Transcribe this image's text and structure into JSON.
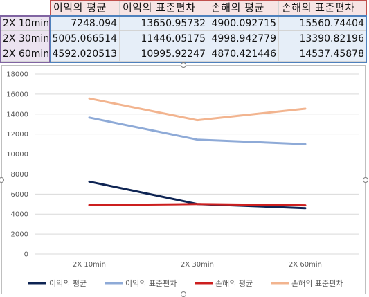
{
  "sheet": {
    "headers": [
      "",
      "이익의 평균",
      "이익의 표준편차",
      "손해의 평균",
      "손해의 표준편차"
    ],
    "rows": [
      {
        "label": "2X 10min",
        "values": [
          "7248.094",
          "13650.95732",
          "4900.092715",
          "15560.74404"
        ]
      },
      {
        "label": "2X 30min",
        "values": [
          "5005.066514",
          "11446.05175",
          "4998.942779",
          "13390.82196"
        ]
      },
      {
        "label": "2X 60min",
        "values": [
          "4592.020513",
          "10995.92247",
          "4870.421446",
          "14537.45878"
        ]
      }
    ]
  },
  "chart_data": {
    "type": "line",
    "categories": [
      "2X 10min",
      "2X 30min",
      "2X 60min"
    ],
    "series": [
      {
        "name": "이익의 평균",
        "color": "#0e2453",
        "values": [
          7248.094,
          5005.066514,
          4592.020513
        ]
      },
      {
        "name": "이익의 표준편차",
        "color": "#8eaad7",
        "values": [
          13650.95732,
          11446.05175,
          10995.92247
        ]
      },
      {
        "name": "손해의 평균",
        "color": "#cc1f1f",
        "values": [
          4900.092715,
          4998.942779,
          4870.421446
        ]
      },
      {
        "name": "손해의 표준편차",
        "color": "#f2b48f",
        "values": [
          15560.74404,
          13390.82196,
          14537.45878
        ]
      }
    ],
    "ylim": [
      0,
      18000
    ],
    "yticks": [
      0,
      2000,
      4000,
      6000,
      8000,
      10000,
      12000,
      14000,
      16000,
      18000
    ],
    "grid": true,
    "legend": "bottom",
    "title": "",
    "xlabel": "",
    "ylabel": ""
  }
}
